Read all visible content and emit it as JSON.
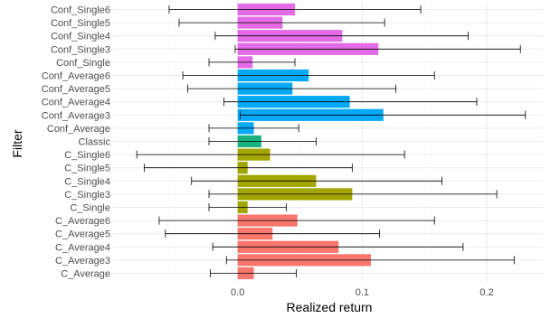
{
  "chart_data": {
    "type": "bar",
    "orientation": "horizontal",
    "xlabel": "Realized return",
    "ylabel": "Filter",
    "xlim": [
      -0.1,
      0.245
    ],
    "x_ticks": [
      0.0,
      0.1,
      0.2
    ],
    "x_tick_labels": [
      "0.0",
      "0.1",
      "0.2"
    ],
    "x_minor_ticks": [
      -0.05,
      0.05,
      0.15
    ],
    "grid": true,
    "legend": "none",
    "categories": [
      "Conf_Single6",
      "Conf_Single5",
      "Conf_Single4",
      "Conf_Single3",
      "Conf_Single",
      "Conf_Average6",
      "Conf_Average5",
      "Conf_Average4",
      "Conf_Average3",
      "Conf_Average",
      "Classic",
      "C_Single6",
      "C_Single5",
      "C_Single4",
      "C_Single3",
      "C_Single",
      "C_Average6",
      "C_Average5",
      "C_Average4",
      "C_Average3",
      "C_Average"
    ],
    "values": [
      0.046,
      0.036,
      0.084,
      0.113,
      0.012,
      0.057,
      0.044,
      0.09,
      0.117,
      0.013,
      0.019,
      0.026,
      0.008,
      0.063,
      0.092,
      0.008,
      0.048,
      0.028,
      0.081,
      0.107,
      0.013
    ],
    "error_low": [
      -0.055,
      -0.047,
      -0.018,
      -0.002,
      -0.023,
      -0.044,
      -0.04,
      -0.011,
      0.002,
      -0.023,
      -0.023,
      -0.081,
      -0.075,
      -0.037,
      -0.023,
      -0.023,
      -0.063,
      -0.058,
      -0.02,
      -0.009,
      -0.022
    ],
    "error_high": [
      0.147,
      0.118,
      0.185,
      0.227,
      0.046,
      0.158,
      0.127,
      0.192,
      0.231,
      0.049,
      0.063,
      0.134,
      0.092,
      0.164,
      0.208,
      0.039,
      0.158,
      0.114,
      0.181,
      0.222,
      0.047
    ],
    "group_colors": {
      "Conf_Single": "#E36BE5",
      "Conf_Average": "#03A9F4",
      "Classic": "#18B27E",
      "C_Single": "#A3A500",
      "C_Average": "#F8766D"
    },
    "bar_colors": [
      "#E36BE5",
      "#E36BE5",
      "#E36BE5",
      "#E36BE5",
      "#E36BE5",
      "#03A9F4",
      "#03A9F4",
      "#03A9F4",
      "#03A9F4",
      "#03A9F4",
      "#18B27E",
      "#A3A500",
      "#A3A500",
      "#A3A500",
      "#A3A500",
      "#A3A500",
      "#F8766D",
      "#F8766D",
      "#F8766D",
      "#F8766D",
      "#F8766D"
    ]
  }
}
